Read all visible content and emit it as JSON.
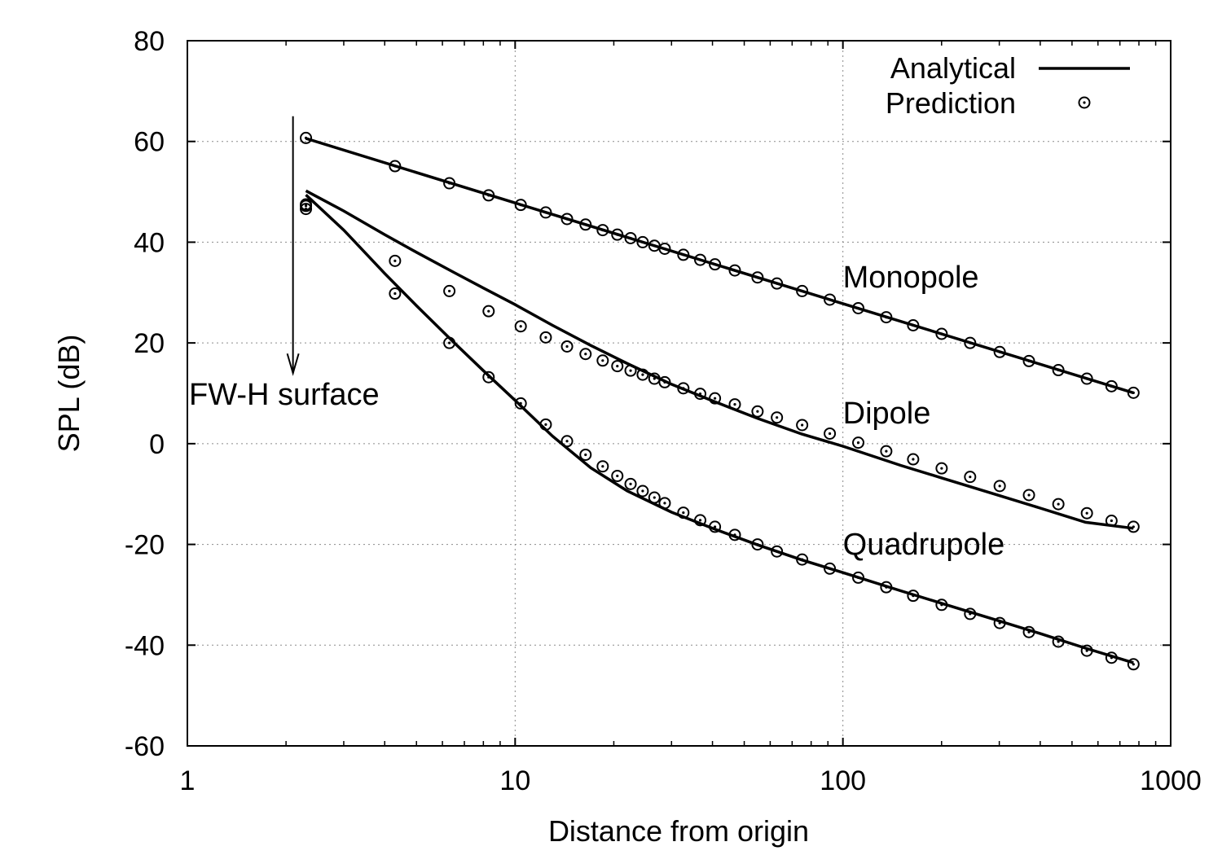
{
  "chart_data": {
    "type": "line",
    "xlabel": "Distance from origin",
    "ylabel": "SPL (dB)",
    "xscale": "log",
    "xlim": [
      1,
      1000
    ],
    "ylim": [
      -60,
      80
    ],
    "grid": true,
    "legend_position": "top-right",
    "x_ticks": [
      "1",
      "10",
      "100",
      "1000"
    ],
    "y_ticks": [
      "80",
      "60",
      "40",
      "20",
      "0",
      "-20",
      "-40",
      "-60"
    ],
    "legend": [
      {
        "label": "Analytical",
        "style": "solid line"
      },
      {
        "label": "Prediction",
        "style": "circle with center dot"
      }
    ],
    "annotation": {
      "text": "FW-H surface",
      "x": 2.1,
      "arrow_from_y": 65,
      "arrow_to_y": 14
    },
    "series": [
      {
        "name": "Monopole",
        "label_position": {
          "x": 100,
          "y": 31
        },
        "analytical": {
          "x": [
            2.3,
            10,
            100,
            770
          ],
          "y": [
            60.6,
            47.8,
            27.8,
            10.1
          ]
        },
        "prediction": {
          "x": [
            2.3,
            4.3,
            6.3,
            8.3,
            10.4,
            12.4,
            14.4,
            16.4,
            18.5,
            20.5,
            22.5,
            24.5,
            26.6,
            28.6,
            32.6,
            36.7,
            40.7,
            46.8,
            54.9,
            62.9,
            75.1,
            91.2,
            111.4,
            135.6,
            163.8,
            200.1,
            244.4,
            300.9,
            369.5,
            454.3,
            555.1,
            659.9,
            770
          ],
          "y": [
            60.7,
            55.1,
            51.7,
            49.3,
            47.4,
            45.9,
            44.6,
            43.5,
            42.4,
            41.5,
            40.8,
            40.0,
            39.3,
            38.7,
            37.5,
            36.5,
            35.6,
            34.4,
            33.0,
            31.8,
            30.3,
            28.6,
            26.9,
            25.1,
            23.5,
            21.8,
            20.0,
            18.2,
            16.4,
            14.6,
            12.9,
            11.4,
            10.1
          ]
        }
      },
      {
        "name": "Dipole",
        "label_position": {
          "x": 100,
          "y": 4
        },
        "analytical": {
          "x": [
            2.3,
            3,
            4,
            5,
            6.5,
            8,
            10,
            13,
            17,
            22,
            30,
            40,
            55,
            75,
            100,
            150,
            200,
            300,
            400,
            550,
            770
          ],
          "y": [
            50.2,
            46.2,
            41.5,
            38.0,
            34.0,
            30.9,
            27.6,
            23.5,
            19.5,
            15.9,
            11.8,
            8.5,
            5.0,
            1.9,
            -0.5,
            -4.3,
            -6.8,
            -10.3,
            -12.8,
            -15.6,
            -16.8
          ]
        },
        "prediction": {
          "x": [
            2.3,
            2.3,
            4.3,
            6.3,
            8.3,
            10.4,
            12.4,
            14.4,
            16.4,
            18.5,
            20.5,
            22.5,
            24.5,
            26.6,
            28.6,
            32.6,
            36.7,
            40.7,
            46.8,
            54.9,
            62.9,
            75.1,
            91.2,
            111.4,
            135.6,
            163.8,
            200.1,
            244.4,
            300.9,
            369.5,
            454.3,
            555.1,
            659.9,
            770
          ],
          "y": [
            47.2,
            46.6,
            36.3,
            30.3,
            26.3,
            23.3,
            21.1,
            19.3,
            17.8,
            16.5,
            15.4,
            14.5,
            13.7,
            12.9,
            12.2,
            11.0,
            9.9,
            9.0,
            7.8,
            6.4,
            5.2,
            3.7,
            2.0,
            0.2,
            -1.5,
            -3.1,
            -4.9,
            -6.6,
            -8.4,
            -10.2,
            -12.0,
            -13.8,
            -15.3,
            -16.5
          ]
        }
      },
      {
        "name": "Quadrupole",
        "label_position": {
          "x": 100,
          "y": -22
        },
        "analytical": {
          "x": [
            2.3,
            3,
            4,
            5,
            6.5,
            8,
            10,
            13,
            17,
            22,
            30,
            40,
            55,
            75,
            100,
            150,
            200,
            300,
            400,
            550,
            770
          ],
          "y": [
            49.4,
            42.4,
            33.8,
            27.4,
            20.1,
            14.5,
            8.6,
            1.5,
            -4.8,
            -9.4,
            -13.6,
            -16.8,
            -20.1,
            -23.1,
            -25.6,
            -29.2,
            -31.7,
            -35.2,
            -37.7,
            -40.6,
            -43.5
          ]
        },
        "prediction": {
          "x": [
            2.3,
            4.3,
            6.3,
            8.3,
            10.4,
            12.4,
            14.4,
            16.4,
            18.5,
            20.5,
            22.5,
            24.5,
            26.6,
            28.6,
            32.6,
            36.7,
            40.7,
            46.8,
            54.9,
            62.9,
            75.1,
            91.2,
            111.4,
            135.6,
            163.8,
            200.1,
            244.4,
            300.9,
            369.5,
            454.3,
            555.1,
            659.9,
            770
          ],
          "y": [
            47.5,
            29.8,
            20.0,
            13.2,
            8.0,
            3.8,
            0.5,
            -2.2,
            -4.5,
            -6.4,
            -8.0,
            -9.4,
            -10.7,
            -11.8,
            -13.7,
            -15.2,
            -16.5,
            -18.1,
            -20.0,
            -21.4,
            -23.0,
            -24.8,
            -26.6,
            -28.5,
            -30.2,
            -32.0,
            -33.8,
            -35.6,
            -37.4,
            -39.3,
            -41.1,
            -42.5,
            -43.8
          ]
        }
      }
    ]
  }
}
